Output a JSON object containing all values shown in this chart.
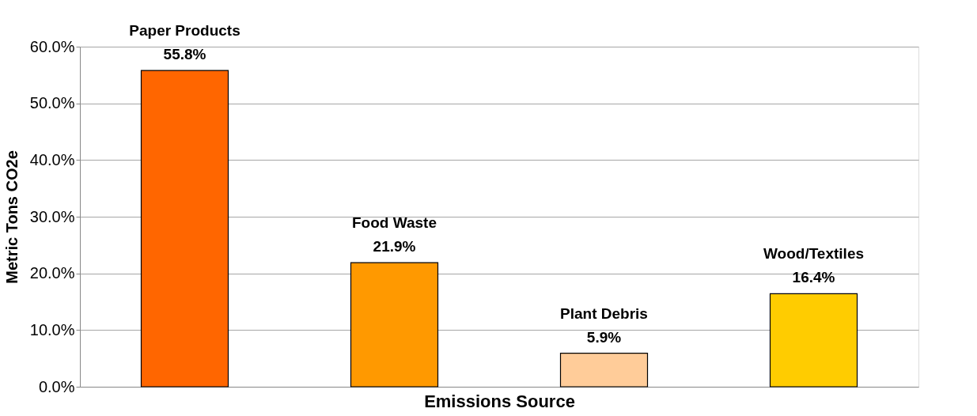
{
  "chart_data": {
    "type": "bar",
    "xlabel": "Emissions Source",
    "ylabel": "Metric Tons CO2e",
    "categories": [
      "Paper Products",
      "Food Waste",
      "Plant Debris",
      "Wood/Textiles"
    ],
    "values": [
      55.8,
      21.9,
      5.9,
      16.4
    ],
    "colors": [
      "#ff6600",
      "#ff9900",
      "#ffcc99",
      "#ffcc00"
    ],
    "value_labels": [
      "55.8%",
      "21.9%",
      "5.9%",
      "16.4%"
    ],
    "ylim": [
      0,
      60
    ],
    "yticks": [
      {
        "value": 0,
        "label": "0.0%"
      },
      {
        "value": 10,
        "label": "10.0%"
      },
      {
        "value": 20,
        "label": "20.0%"
      },
      {
        "value": 30,
        "label": "30.0%"
      },
      {
        "value": 40,
        "label": "40.0%"
      },
      {
        "value": 50,
        "label": "50.0%"
      },
      {
        "value": 60,
        "label": "60.0%"
      }
    ],
    "grid": "y",
    "tick_labels": "y",
    "legend": false
  }
}
